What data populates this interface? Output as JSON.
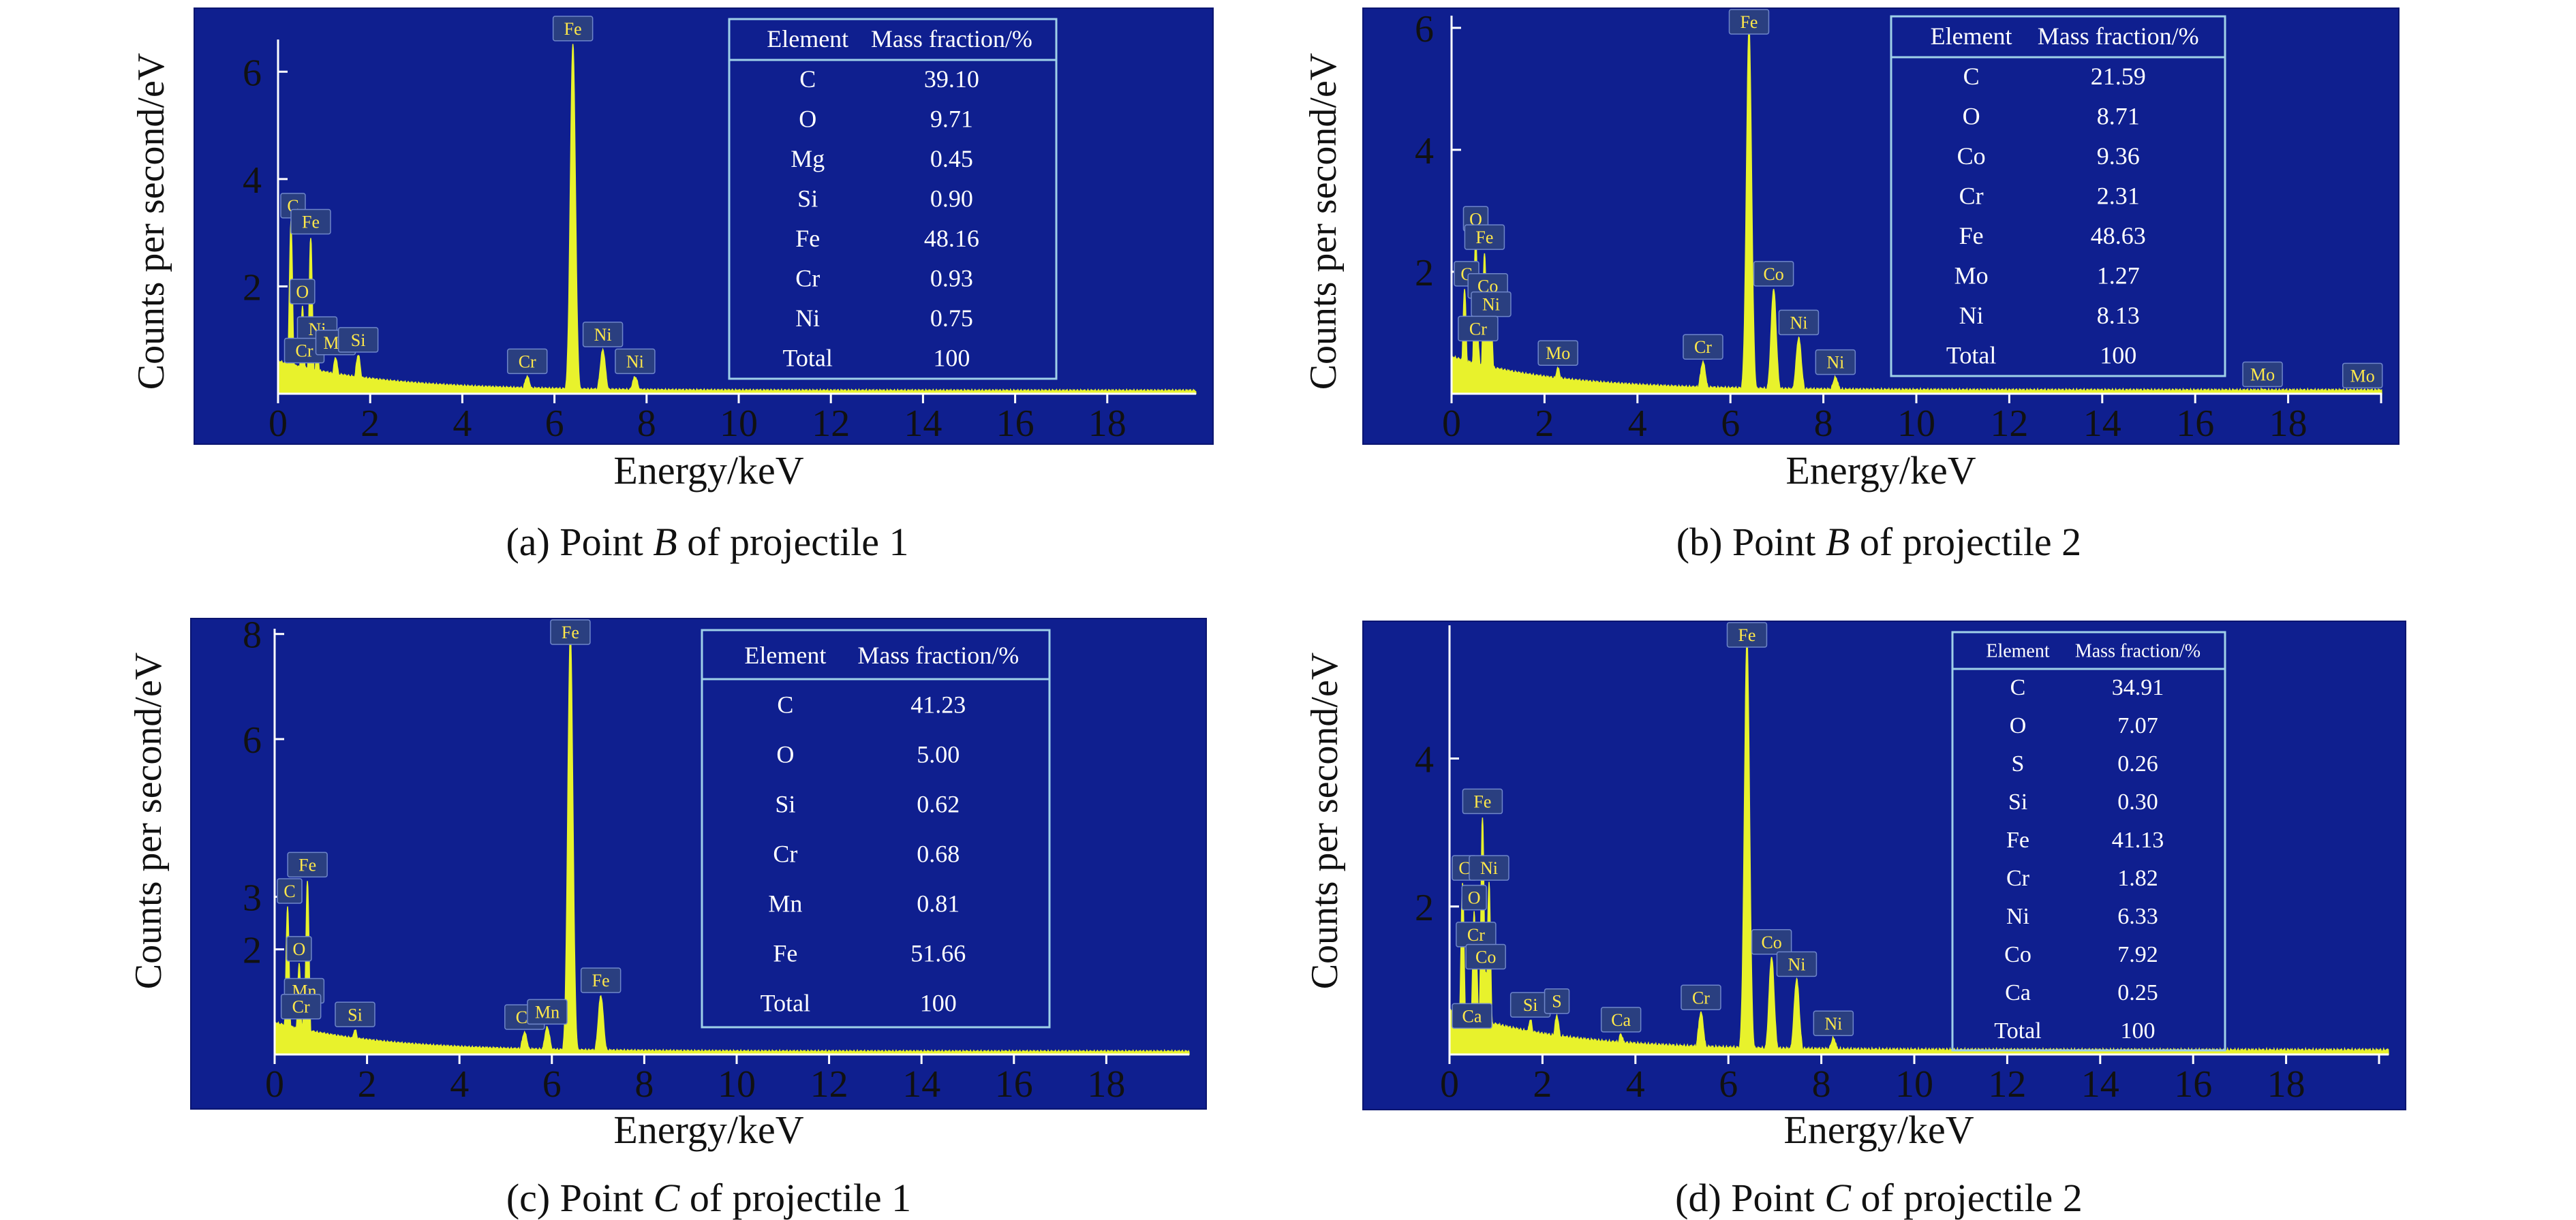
{
  "colors": {
    "background": "#ffffff",
    "plot_bg": "#0f1f8f",
    "spectrum": "#e8f22c",
    "axis": "#ffffff",
    "table_border": "#9fd0e8",
    "peak_label_bg": "#2a3f80",
    "peak_label_text": "#ffe84a",
    "text": "#111111"
  },
  "panels": [
    {
      "caption_prefix": "(a) Point ",
      "caption_point": "B",
      "caption_suffix": " of projectile 1",
      "xlabel": "Energy/keV",
      "ylabel": "Counts per second/eV",
      "table_headers": [
        "Element",
        "Mass fraction/%"
      ],
      "table_rows": [
        [
          "C",
          "39.10"
        ],
        [
          "O",
          "9.71"
        ],
        [
          "Mg",
          "0.45"
        ],
        [
          "Si",
          "0.90"
        ],
        [
          "Fe",
          "48.16"
        ],
        [
          "Cr",
          "0.93"
        ],
        [
          "Ni",
          "0.75"
        ],
        [
          "Total",
          "100"
        ]
      ]
    },
    {
      "caption_prefix": "(b) Point ",
      "caption_point": "B",
      "caption_suffix": " of projectile 2",
      "xlabel": "Energy/keV",
      "ylabel": "Counts per second/eV",
      "table_headers": [
        "Element",
        "Mass fraction/%"
      ],
      "table_rows": [
        [
          "C",
          "21.59"
        ],
        [
          "O",
          "8.71"
        ],
        [
          "Co",
          "9.36"
        ],
        [
          "Cr",
          "2.31"
        ],
        [
          "Fe",
          "48.63"
        ],
        [
          "Mo",
          "1.27"
        ],
        [
          "Ni",
          "8.13"
        ],
        [
          "Total",
          "100"
        ]
      ]
    },
    {
      "caption_prefix": "(c) Point ",
      "caption_point": "C",
      "caption_suffix": " of projectile 1",
      "xlabel": "Energy/keV",
      "ylabel": "Counts per second/eV",
      "table_headers": [
        "Element",
        "Mass fraction/%"
      ],
      "table_rows": [
        [
          "C",
          "41.23"
        ],
        [
          "O",
          "5.00"
        ],
        [
          "Si",
          "0.62"
        ],
        [
          "Cr",
          "0.68"
        ],
        [
          "Mn",
          "0.81"
        ],
        [
          "Fe",
          "51.66"
        ],
        [
          "Total",
          "100"
        ]
      ]
    },
    {
      "caption_prefix": "(d) Point ",
      "caption_point": "C",
      "caption_suffix": " of projectile 2",
      "xlabel": "Energy/keV",
      "ylabel": "Counts per second/eV",
      "table_headers": [
        "Element",
        "Mass fraction/%"
      ],
      "table_rows": [
        [
          "C",
          "34.91"
        ],
        [
          "O",
          "7.07"
        ],
        [
          "S",
          "0.26"
        ],
        [
          "Si",
          "0.30"
        ],
        [
          "Fe",
          "41.13"
        ],
        [
          "Cr",
          "1.82"
        ],
        [
          "Ni",
          "6.33"
        ],
        [
          "Co",
          "7.92"
        ],
        [
          "Ca",
          "0.25"
        ],
        [
          "Total",
          "100"
        ]
      ]
    }
  ],
  "chart_data": [
    {
      "type": "line",
      "panel": "a",
      "xlabel": "Energy/keV",
      "ylabel": "Counts per second/eV",
      "xlim": [
        0,
        20
      ],
      "ylim": [
        0,
        6.6
      ],
      "xticks": [
        0,
        2,
        4,
        6,
        8,
        10,
        12,
        14,
        16,
        18
      ],
      "yticks": [
        2,
        4,
        6
      ],
      "peaks": [
        {
          "label": "C",
          "x": 0.28,
          "y": 3.2
        },
        {
          "label": "O",
          "x": 0.53,
          "y": 1.6
        },
        {
          "label": "Fe",
          "x": 0.71,
          "y": 2.9
        },
        {
          "label": "Ni",
          "x": 0.85,
          "y": 0.9
        },
        {
          "label": "Cr",
          "x": 0.57,
          "y": 0.5
        },
        {
          "label": "Mg",
          "x": 1.25,
          "y": 0.65
        },
        {
          "label": "Si",
          "x": 1.74,
          "y": 0.7
        },
        {
          "label": "Cr",
          "x": 5.41,
          "y": 0.3
        },
        {
          "label": "Fe",
          "x": 6.4,
          "y": 6.5
        },
        {
          "label": "Ni",
          "x": 7.05,
          "y": 0.8
        },
        {
          "label": "Ni",
          "x": 7.75,
          "y": 0.3
        }
      ],
      "table_headers": [
        "Element",
        "Mass fraction/%"
      ],
      "table": [
        [
          "C",
          "39.10"
        ],
        [
          "O",
          "9.71"
        ],
        [
          "Mg",
          "0.45"
        ],
        [
          "Si",
          "0.90"
        ],
        [
          "Fe",
          "48.16"
        ],
        [
          "Cr",
          "0.93"
        ],
        [
          "Ni",
          "0.75"
        ],
        [
          "Total",
          "100"
        ]
      ]
    },
    {
      "type": "line",
      "panel": "b",
      "xlabel": "Energy/keV",
      "ylabel": "Counts per second/eV",
      "xlim": [
        0,
        20
      ],
      "ylim": [
        0,
        6.2
      ],
      "xticks": [
        0,
        2,
        4,
        6,
        8,
        10,
        12,
        14,
        16,
        18
      ],
      "yticks": [
        2,
        4,
        6
      ],
      "peaks": [
        {
          "label": "C",
          "x": 0.28,
          "y": 1.7
        },
        {
          "label": "O",
          "x": 0.52,
          "y": 2.6
        },
        {
          "label": "Fe",
          "x": 0.71,
          "y": 2.3
        },
        {
          "label": "Co",
          "x": 0.78,
          "y": 1.5
        },
        {
          "label": "Ni",
          "x": 0.85,
          "y": 1.2
        },
        {
          "label": "Cr",
          "x": 0.57,
          "y": 0.8
        },
        {
          "label": "Mo",
          "x": 2.29,
          "y": 0.4
        },
        {
          "label": "Cr",
          "x": 5.41,
          "y": 0.5
        },
        {
          "label": "Fe",
          "x": 6.4,
          "y": 6.0
        },
        {
          "label": "Co",
          "x": 6.93,
          "y": 1.7
        },
        {
          "label": "Ni",
          "x": 7.47,
          "y": 0.9
        },
        {
          "label": "Ni",
          "x": 8.26,
          "y": 0.25
        },
        {
          "label": "Mo",
          "x": 17.45,
          "y": 0.05
        },
        {
          "label": "Mo",
          "x": 19.6,
          "y": 0.03
        }
      ],
      "table_headers": [
        "Element",
        "Mass fraction/%"
      ],
      "table": [
        [
          "C",
          "21.59"
        ],
        [
          "O",
          "8.71"
        ],
        [
          "Co",
          "9.36"
        ],
        [
          "Cr",
          "2.31"
        ],
        [
          "Fe",
          "48.63"
        ],
        [
          "Mo",
          "1.27"
        ],
        [
          "Ni",
          "8.13"
        ],
        [
          "Total",
          "100"
        ]
      ]
    },
    {
      "type": "line",
      "panel": "c",
      "xlabel": "Energy/keV",
      "ylabel": "Counts per second/eV",
      "xlim": [
        0,
        20
      ],
      "ylim": [
        0,
        8.1
      ],
      "xticks": [
        0,
        2,
        4,
        6,
        8,
        10,
        12,
        14,
        16,
        18
      ],
      "yticks": [
        2,
        3,
        6,
        8
      ],
      "peaks": [
        {
          "label": "C",
          "x": 0.28,
          "y": 2.8
        },
        {
          "label": "O",
          "x": 0.53,
          "y": 1.7
        },
        {
          "label": "Fe",
          "x": 0.71,
          "y": 3.3
        },
        {
          "label": "Mn",
          "x": 0.64,
          "y": 0.9
        },
        {
          "label": "Cr",
          "x": 0.57,
          "y": 0.6
        },
        {
          "label": "Si",
          "x": 1.74,
          "y": 0.45
        },
        {
          "label": "Cr",
          "x": 5.41,
          "y": 0.4
        },
        {
          "label": "Mn",
          "x": 5.9,
          "y": 0.5
        },
        {
          "label": "Fe",
          "x": 6.4,
          "y": 8.0
        },
        {
          "label": "Fe",
          "x": 7.06,
          "y": 1.1
        }
      ],
      "table_headers": [
        "Element",
        "Mass fraction/%"
      ],
      "table": [
        [
          "C",
          "41.23"
        ],
        [
          "O",
          "5.00"
        ],
        [
          "Si",
          "0.62"
        ],
        [
          "Cr",
          "0.68"
        ],
        [
          "Mn",
          "0.81"
        ],
        [
          "Fe",
          "51.66"
        ],
        [
          "Total",
          "100"
        ]
      ]
    },
    {
      "type": "line",
      "panel": "d",
      "xlabel": "Energy/keV",
      "ylabel": "Counts per second/eV",
      "xlim": [
        0,
        20
      ],
      "ylim": [
        0,
        5.8
      ],
      "xticks": [
        0,
        2,
        4,
        6,
        8,
        10,
        12,
        14,
        16,
        18
      ],
      "yticks": [
        2,
        4
      ],
      "peaks": [
        {
          "label": "C",
          "x": 0.28,
          "y": 2.3
        },
        {
          "label": "Ni",
          "x": 0.85,
          "y": 2.3
        },
        {
          "label": "O",
          "x": 0.53,
          "y": 1.9
        },
        {
          "label": "Fe",
          "x": 0.71,
          "y": 3.2
        },
        {
          "label": "Cr",
          "x": 0.57,
          "y": 1.4
        },
        {
          "label": "Co",
          "x": 0.78,
          "y": 1.1
        },
        {
          "label": "Ca",
          "x": 0.34,
          "y": 0.3
        },
        {
          "label": "Si",
          "x": 1.74,
          "y": 0.45
        },
        {
          "label": "S",
          "x": 2.31,
          "y": 0.5
        },
        {
          "label": "Ca",
          "x": 3.69,
          "y": 0.25
        },
        {
          "label": "Cr",
          "x": 5.41,
          "y": 0.55
        },
        {
          "label": "Fe",
          "x": 6.4,
          "y": 5.6
        },
        {
          "label": "Co",
          "x": 6.93,
          "y": 1.3
        },
        {
          "label": "Ni",
          "x": 7.47,
          "y": 1.0
        },
        {
          "label": "Ni",
          "x": 8.26,
          "y": 0.2
        }
      ],
      "table_headers": [
        "Element",
        "Mass fraction/%"
      ],
      "table": [
        [
          "C",
          "34.91"
        ],
        [
          "O",
          "7.07"
        ],
        [
          "S",
          "0.26"
        ],
        [
          "Si",
          "0.30"
        ],
        [
          "Fe",
          "41.13"
        ],
        [
          "Cr",
          "1.82"
        ],
        [
          "Ni",
          "6.33"
        ],
        [
          "Co",
          "7.92"
        ],
        [
          "Ca",
          "0.25"
        ],
        [
          "Total",
          "100"
        ]
      ]
    }
  ]
}
